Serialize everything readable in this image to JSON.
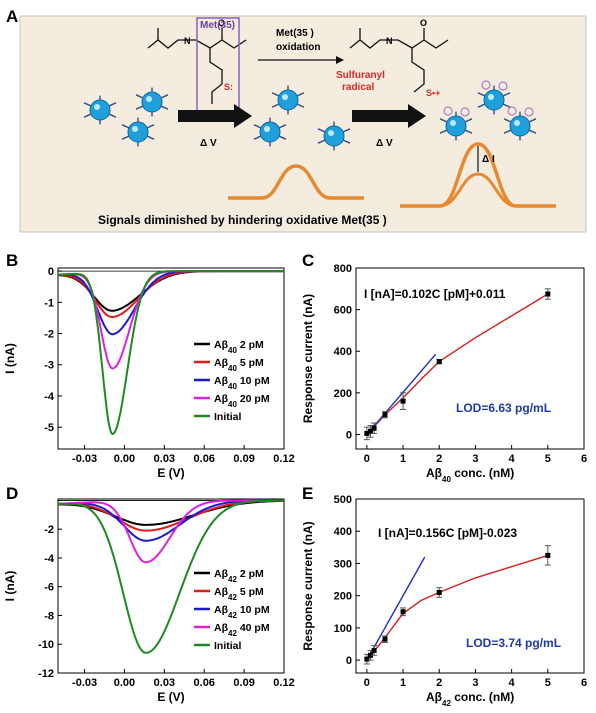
{
  "panel_a": {
    "letter": "A",
    "met_box_label": "Met(35)",
    "arrow1_label_line1": "Met(35 )",
    "arrow1_label_line2": "oxidation",
    "radical_line1": "Sulfuranyl",
    "radical_line2": "radical",
    "radical_symbol": "S•+",
    "sulfur_symbol": "S:",
    "voltage_label_1": "Δ V",
    "voltage_label_2": "Δ V",
    "delta_i_label": "Δ I",
    "caption": "Signals diminished by hindering oxidative Met(35 )",
    "colors": {
      "background": "#f3ecdf",
      "sphere": "#1ea0dc",
      "peak": "#e8892f",
      "box": "#8a62b8",
      "radical": "#d42a2a"
    }
  },
  "chart_data": [
    {
      "id": "B",
      "type": "line",
      "letter": "B",
      "xlabel": "E (V)",
      "ylabel": "I (nA)",
      "xlim": [
        -0.05,
        0.12
      ],
      "ylim": [
        -5.7,
        0.1
      ],
      "xticks": [
        "-0.03",
        "0.00",
        "0.03",
        "0.06",
        "0.09",
        "0.12"
      ],
      "xtick_values": [
        -0.03,
        0.0,
        0.03,
        0.06,
        0.09,
        0.12
      ],
      "yticks": [
        "0",
        "-1",
        "-2",
        "-3",
        "-4",
        "-5"
      ],
      "ytick_values": [
        0,
        -1,
        -2,
        -3,
        -4,
        -5
      ],
      "series": [
        {
          "name": "Aβ40 2 pM",
          "legend_main": "Aβ",
          "legend_sub": "40",
          "legend_rest": " 2 pM",
          "color": "#000000",
          "peak_x": -0.009,
          "peak_y": -1.25,
          "width": 0.014
        },
        {
          "name": "Aβ40 5 pM",
          "legend_main": "Aβ",
          "legend_sub": "40",
          "legend_rest": " 5 pM",
          "color": "#e01b1b",
          "peak_x": -0.009,
          "peak_y": -1.45,
          "width": 0.013
        },
        {
          "name": "Aβ40 10 pM",
          "legend_main": "Aβ",
          "legend_sub": "40",
          "legend_rest": " 10 pM",
          "color": "#1b1bd0",
          "peak_x": -0.009,
          "peak_y": -2.0,
          "width": 0.011
        },
        {
          "name": "Aβ40 20 pM",
          "legend_main": "Aβ",
          "legend_sub": "40",
          "legend_rest": " 20 pM",
          "color": "#e020e0",
          "peak_x": -0.009,
          "peak_y": -3.1,
          "width": 0.0085
        },
        {
          "name": "Initial",
          "legend_main": "Initial",
          "legend_sub": "",
          "legend_rest": "",
          "color": "#1e8a1e",
          "peak_x": -0.009,
          "peak_y": -5.2,
          "width": 0.0075
        }
      ]
    },
    {
      "id": "C",
      "type": "scatter",
      "letter": "C",
      "xlabel_main": "Aβ",
      "xlabel_sub": "40",
      "xlabel_rest": " conc. (nM)",
      "ylabel": "Response current (nA)",
      "xlim": [
        -0.3,
        6
      ],
      "ylim": [
        -70,
        800
      ],
      "xticks": [
        "0",
        "1",
        "2",
        "3",
        "4",
        "5",
        "6"
      ],
      "xtick_values": [
        0,
        1,
        2,
        3,
        4,
        5,
        6
      ],
      "yticks": [
        "0",
        "200",
        "400",
        "600",
        "800"
      ],
      "ytick_values": [
        0,
        200,
        400,
        600,
        800
      ],
      "equation": "I [nA]=0.102C [pM]+0.011",
      "lod": "LOD=6.63 pg/mL",
      "points": [
        {
          "x": 0.0,
          "y": 5,
          "err": 30
        },
        {
          "x": 0.1,
          "y": 15,
          "err": 28
        },
        {
          "x": 0.2,
          "y": 30,
          "err": 25
        },
        {
          "x": 0.5,
          "y": 95,
          "err": 15
        },
        {
          "x": 1.0,
          "y": 160,
          "err": 40
        },
        {
          "x": 2.0,
          "y": 350,
          "err": 10
        },
        {
          "x": 5.0,
          "y": 675,
          "err": 25
        }
      ],
      "fit_linear": {
        "x0": 0,
        "y0": 0,
        "x1": 1.9,
        "y1": 385,
        "color": "#1b2fcf"
      },
      "fit_curve": {
        "x": [
          0,
          0.5,
          1,
          1.5,
          2,
          3,
          4,
          5
        ],
        "y": [
          0,
          95,
          175,
          265,
          350,
          465,
          570,
          675
        ],
        "color": "#d42020"
      }
    },
    {
      "id": "D",
      "type": "line",
      "letter": "D",
      "xlabel": "E (V)",
      "ylabel": "I (nA)",
      "xlim": [
        -0.05,
        0.12
      ],
      "ylim": [
        -12,
        0.1
      ],
      "xticks": [
        "-0.03",
        "0.00",
        "0.03",
        "0.06",
        "0.09",
        "0.12"
      ],
      "xtick_values": [
        -0.03,
        0.0,
        0.03,
        0.06,
        0.09,
        0.12
      ],
      "yticks": [
        "-2",
        "-4",
        "-6",
        "-8",
        "-10",
        "-12"
      ],
      "ytick_values": [
        -2,
        -4,
        -6,
        -8,
        -10,
        -12
      ],
      "series": [
        {
          "name": "Aβ42 2 pM",
          "legend_main": "Aβ",
          "legend_sub": "42",
          "legend_rest": " 2 pM",
          "color": "#000000",
          "peak_x": 0.016,
          "peak_y": -1.7,
          "width": 0.024
        },
        {
          "name": "Aβ42 5 pM",
          "legend_main": "Aβ",
          "legend_sub": "42",
          "legend_rest": " 5 pM",
          "color": "#e01b1b",
          "peak_x": 0.016,
          "peak_y": -2.1,
          "width": 0.021
        },
        {
          "name": "Aβ42 10 pM",
          "legend_main": "Aβ",
          "legend_sub": "42",
          "legend_rest": " 10 pM",
          "color": "#1b1bd0",
          "peak_x": 0.016,
          "peak_y": -2.8,
          "width": 0.017
        },
        {
          "name": "Aβ42 40 pM",
          "legend_main": "Aβ",
          "legend_sub": "42",
          "legend_rest": " 40 pM",
          "color": "#e020e0",
          "peak_x": 0.016,
          "peak_y": -4.3,
          "width": 0.012
        },
        {
          "name": "Initial",
          "legend_main": "Initial",
          "legend_sub": "",
          "legend_rest": "",
          "color": "#1e8a1e",
          "peak_x": 0.016,
          "peak_y": -10.6,
          "width": 0.017
        }
      ]
    },
    {
      "id": "E",
      "type": "scatter",
      "letter": "E",
      "xlabel_main": "Aβ",
      "xlabel_sub": "42",
      "xlabel_rest": " conc. (nM)",
      "ylabel": "Response current (nA)",
      "xlim": [
        -0.3,
        6
      ],
      "ylim": [
        -40,
        500
      ],
      "xticks": [
        "0",
        "1",
        "2",
        "3",
        "4",
        "5",
        "6"
      ],
      "xtick_values": [
        0,
        1,
        2,
        3,
        4,
        5,
        6
      ],
      "yticks": [
        "0",
        "100",
        "200",
        "300",
        "400",
        "500"
      ],
      "ytick_values": [
        0,
        100,
        200,
        300,
        400,
        500
      ],
      "equation": "I [nA]=0.156C [pM]-0.023",
      "lod": "LOD=3.74 pg/mL",
      "points": [
        {
          "x": 0.0,
          "y": 3,
          "err": 15
        },
        {
          "x": 0.1,
          "y": 15,
          "err": 15
        },
        {
          "x": 0.2,
          "y": 30,
          "err": 15
        },
        {
          "x": 0.5,
          "y": 65,
          "err": 10
        },
        {
          "x": 1.0,
          "y": 150,
          "err": 12
        },
        {
          "x": 2.0,
          "y": 210,
          "err": 15
        },
        {
          "x": 5.0,
          "y": 325,
          "err": 30
        }
      ],
      "fit_linear": {
        "x0": 0,
        "y0": 0,
        "x1": 1.6,
        "y1": 320,
        "color": "#1b2fcf"
      },
      "fit_curve": {
        "x": [
          0,
          0.5,
          1,
          1.5,
          2,
          3,
          4,
          5
        ],
        "y": [
          0,
          70,
          145,
          185,
          210,
          255,
          290,
          325
        ],
        "color": "#d42020"
      }
    }
  ]
}
